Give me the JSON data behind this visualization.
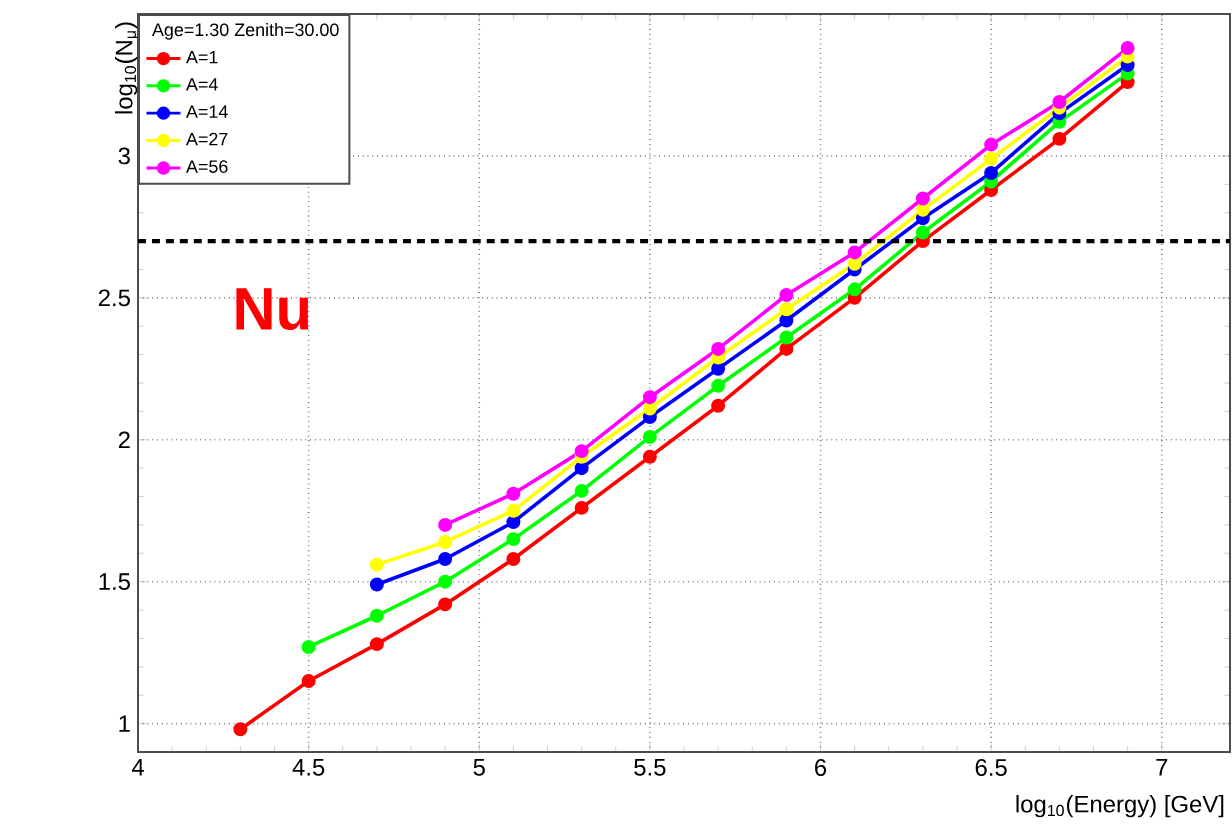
{
  "chart_data": {
    "type": "line",
    "xlabel": "log$_{10}$(Energy) [GeV]",
    "ylabel": "log$_{10}$(N$_{μ}$)",
    "legend_title": "Age=1.30 Zenith=30.00",
    "annotations": [
      "Nu"
    ],
    "xlim": [
      4,
      7.2
    ],
    "ylim": [
      0.9,
      3.5
    ],
    "xticks": [
      4,
      4.5,
      5,
      5.5,
      6,
      6.5,
      7
    ],
    "yticks": [
      1,
      1.5,
      2,
      2.5,
      3
    ],
    "grid": true,
    "legend": "top left",
    "marker": "circle",
    "line_style": "solid",
    "ref_lines": [
      {
        "axis": "y",
        "value": 2.7,
        "color": "#000000",
        "line_style": "dashed"
      }
    ],
    "series": [
      {
        "name": "A=1",
        "color": "#ff0000",
        "x": [
          4.3,
          4.5,
          4.7,
          4.9,
          5.1,
          5.3,
          5.5,
          5.7,
          5.9,
          6.1,
          6.3,
          6.5,
          6.7,
          6.9
        ],
        "values": [
          0.98,
          1.15,
          1.28,
          1.42,
          1.58,
          1.76,
          1.94,
          2.12,
          2.32,
          2.5,
          2.7,
          2.88,
          3.06,
          3.26
        ]
      },
      {
        "name": "A=4",
        "color": "#00ff00",
        "x": [
          4.5,
          4.7,
          4.9,
          5.1,
          5.3,
          5.5,
          5.7,
          5.9,
          6.1,
          6.3,
          6.5,
          6.7,
          6.9
        ],
        "values": [
          1.27,
          1.38,
          1.5,
          1.65,
          1.82,
          2.01,
          2.19,
          2.36,
          2.53,
          2.73,
          2.91,
          3.12,
          3.29
        ]
      },
      {
        "name": "A=14",
        "color": "#0000ff",
        "x": [
          4.7,
          4.9,
          5.1,
          5.3,
          5.5,
          5.7,
          5.9,
          6.1,
          6.3,
          6.5,
          6.7,
          6.9
        ],
        "values": [
          1.49,
          1.58,
          1.71,
          1.9,
          2.08,
          2.25,
          2.42,
          2.6,
          2.78,
          2.94,
          3.15,
          3.32
        ]
      },
      {
        "name": "A=27",
        "color": "#ffff00",
        "x": [
          4.7,
          4.9,
          5.1,
          5.3,
          5.5,
          5.7,
          5.9,
          6.1,
          6.3,
          6.5,
          6.7,
          6.9
        ],
        "values": [
          1.56,
          1.64,
          1.75,
          1.94,
          2.11,
          2.29,
          2.46,
          2.62,
          2.81,
          2.99,
          3.17,
          3.35
        ]
      },
      {
        "name": "A=56",
        "color": "#ff00ff",
        "x": [
          4.9,
          5.1,
          5.3,
          5.5,
          5.7,
          5.9,
          6.1,
          6.3,
          6.5,
          6.7,
          6.9
        ],
        "values": [
          1.7,
          1.81,
          1.96,
          2.15,
          2.32,
          2.51,
          2.66,
          2.85,
          3.04,
          3.19,
          3.38
        ]
      }
    ]
  }
}
